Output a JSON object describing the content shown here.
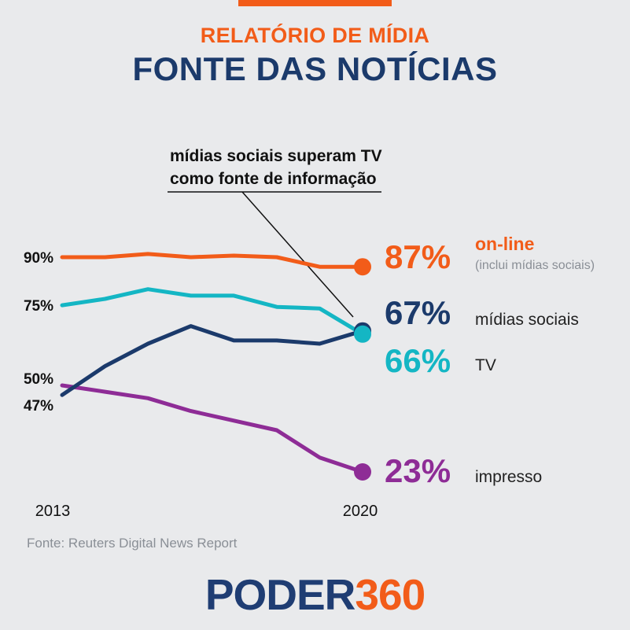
{
  "header": {
    "kicker": "RELATÓRIO DE MÍDIA",
    "title": "FONTE DAS NOTÍCIAS"
  },
  "annotation": {
    "line1": "mídias sociais superam TV",
    "line2": "como fonte de informação"
  },
  "source": "Fonte: Reuters Digital News Report",
  "logo": {
    "part1": "PODER",
    "part2": "360"
  },
  "colors": {
    "accent": "#f25c19",
    "title": "#1b3a6b",
    "background": "#e9eaec",
    "source_text": "#8a8f96",
    "logo_dark": "#1f3d73",
    "logo_accent": "#f25c19"
  },
  "chart_data": {
    "type": "line",
    "x": [
      2013,
      2014,
      2015,
      2016,
      2017,
      2018,
      2019,
      2020
    ],
    "x_tick_labels": [
      "2013",
      "2020"
    ],
    "ylim": [
      20,
      95
    ],
    "grid": false,
    "legend": "none",
    "series": [
      {
        "name": "on-line",
        "note": "(inclui mídias sociais)",
        "color": "#f25c19",
        "values": [
          90,
          90,
          91,
          90,
          90.5,
          90,
          87,
          87
        ],
        "start_label": "90%",
        "end_label": "87%"
      },
      {
        "name": "mídias sociais",
        "color": "#1b3a6b",
        "values": [
          47,
          56,
          63,
          68.5,
          64,
          64,
          63,
          67
        ],
        "start_label": "47%",
        "end_label": "67%"
      },
      {
        "name": "TV",
        "color": "#14b6c4",
        "values": [
          75,
          77,
          80,
          78,
          78,
          74.5,
          74,
          66
        ],
        "start_label": "75%",
        "end_label": "66%"
      },
      {
        "name": "impresso",
        "color": "#8e2c96",
        "values": [
          50,
          48,
          46,
          42,
          39,
          36,
          27.5,
          23
        ],
        "start_label": "50%",
        "end_label": "23%"
      }
    ]
  }
}
